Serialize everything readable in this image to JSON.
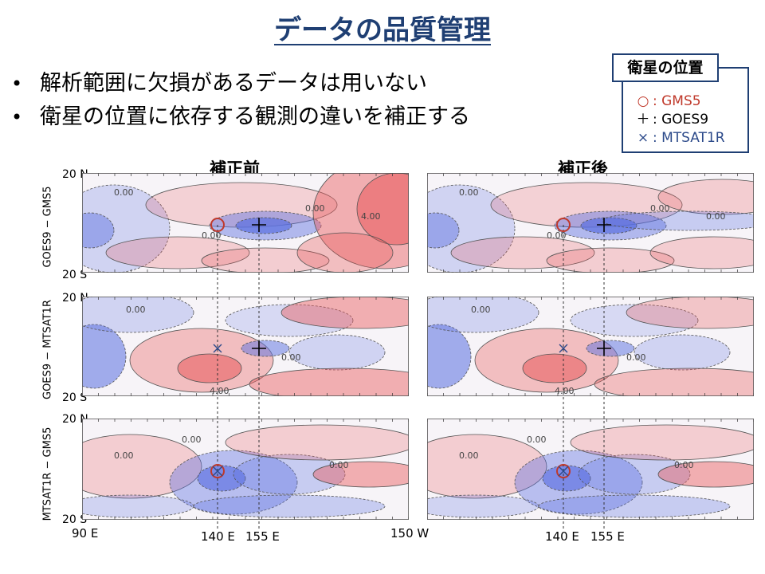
{
  "slide_title": "データの品質管理",
  "bullets": [
    "解析範囲に欠損があるデータは用いない",
    "衛星の位置に依存する観測の違いを補正する"
  ],
  "legend": {
    "title": "衛星の位置",
    "items": [
      {
        "symbol": "○",
        "label": ": GMS5",
        "color": "#c0392b",
        "icon": "circle-icon"
      },
      {
        "symbol": "＋",
        "label": ": GOES9",
        "color": "#000000",
        "icon": "plus-icon"
      },
      {
        "symbol": "×",
        "label": ": MTSAT1R",
        "color": "#2c4a8a",
        "icon": "cross-icon"
      }
    ]
  },
  "columns": [
    "補正前",
    "補正後"
  ],
  "rows": [
    "GOES9 − GMS5",
    "GOES9 − MTSAT1R",
    "MTSAT1R − GMS5"
  ],
  "lat_labels": {
    "north": "20 N",
    "south": "20 S"
  },
  "lon_labels": {
    "west_edge": "90 E",
    "east_edge": "150 W",
    "gms": "140 E",
    "goes": "155 E"
  },
  "contour_labels": {
    "zero": "0.00",
    "four": "4.00"
  },
  "colors": {
    "title": "#1f3f73",
    "positive": "#e8585a",
    "negative": "#5a6fe0",
    "gms_marker": "#c0392b",
    "goes_marker": "#000000",
    "mts_marker": "#2c4a8a"
  }
}
